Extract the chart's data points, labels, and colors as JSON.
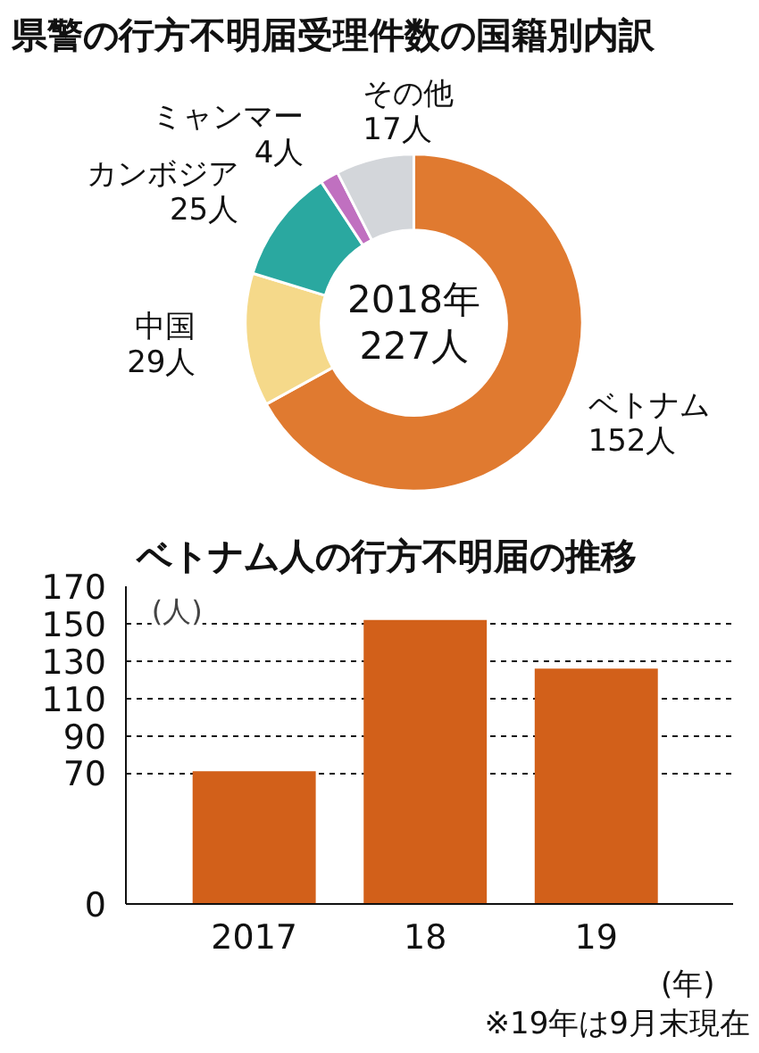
{
  "chart_data": [
    {
      "type": "donut",
      "title": "県警の行方不明届受理件数の国籍別内訳",
      "categories": [
        "ベトナム",
        "中国",
        "カンボジア",
        "ミャンマー",
        "その他"
      ],
      "values": [
        152,
        29,
        25,
        4,
        17
      ],
      "value_labels": [
        "152人",
        "29人",
        "25人",
        "4人",
        "17人"
      ],
      "colors": [
        "#e07a30",
        "#f5d98a",
        "#2aa8a0",
        "#c070c0",
        "#d3d6da"
      ],
      "annotations": [
        "2018年",
        "227人"
      ]
    },
    {
      "type": "bar",
      "title": "ベトナム人の行方不明届の推移",
      "categories": [
        "2017",
        "18",
        "19"
      ],
      "values": [
        71,
        152,
        126
      ],
      "color": "#d2601a",
      "ylim": [
        0,
        170
      ],
      "yticks": [
        0,
        70,
        90,
        110,
        130,
        150,
        170
      ],
      "grid": "y",
      "ylabel": "(人)",
      "xlabel": "(年)",
      "annotations": [
        "※19年は9月末現在"
      ]
    }
  ]
}
